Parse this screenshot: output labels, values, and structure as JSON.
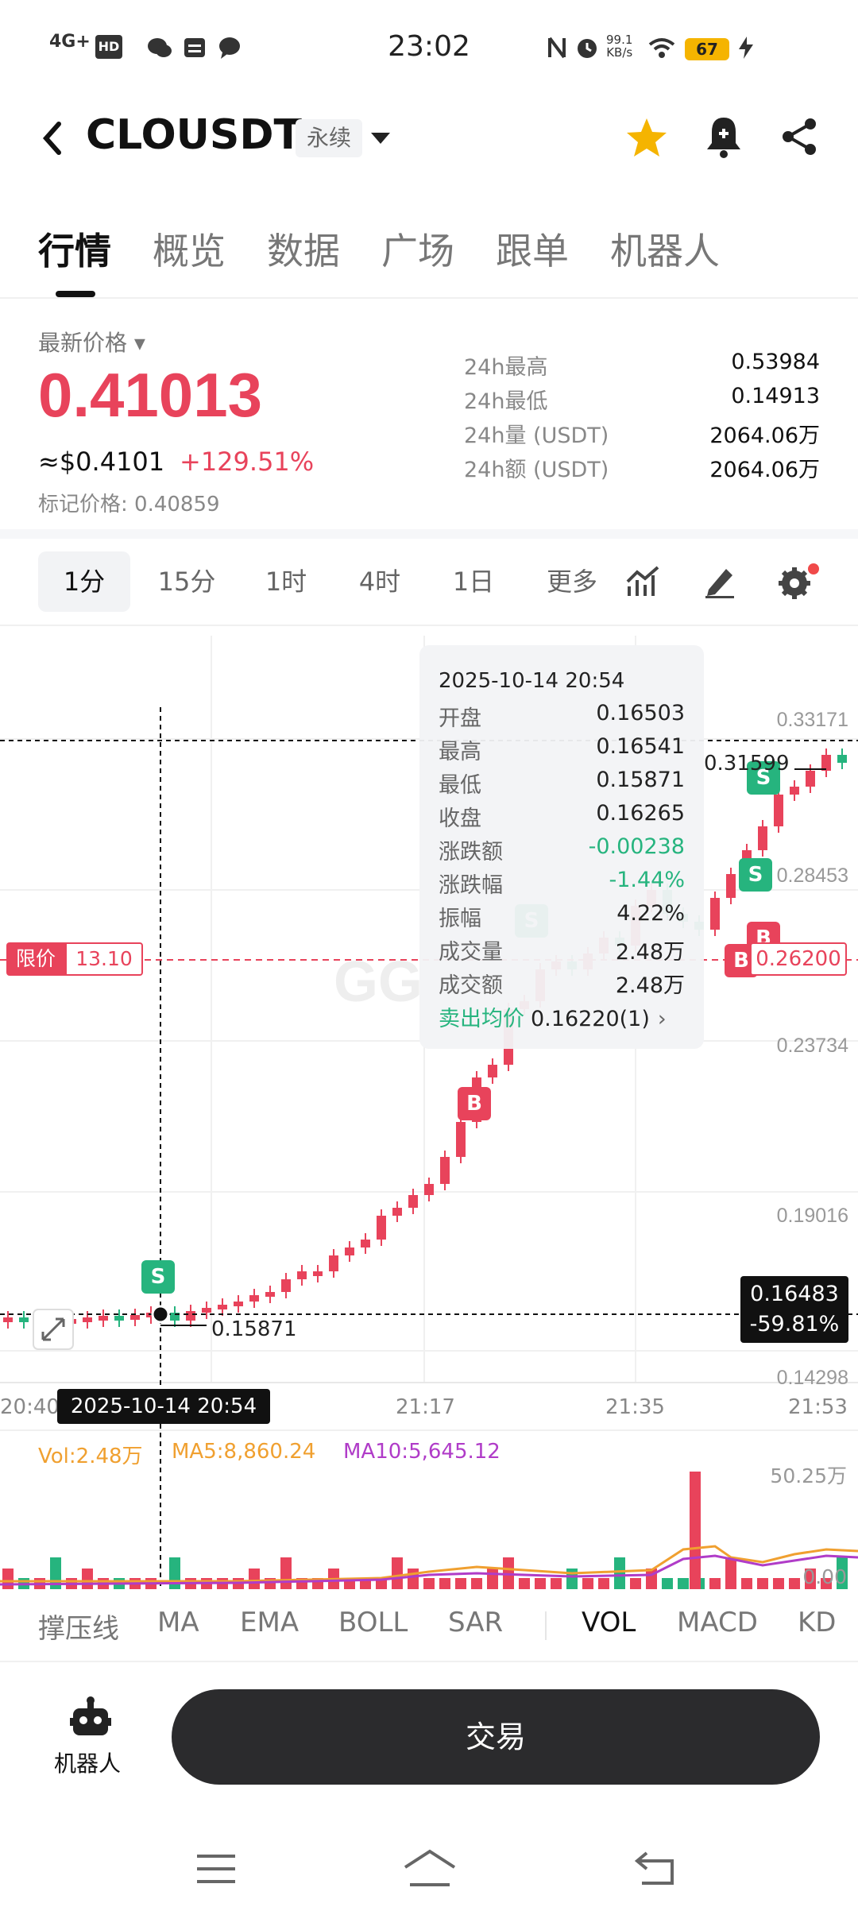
{
  "status_bar": {
    "time": "23:02",
    "network": "4G+",
    "hd": "HD",
    "speed_value": "99.1",
    "speed_unit": "KB/s",
    "battery": "67"
  },
  "header": {
    "symbol": "CLOUSDT",
    "contract_type": "永续"
  },
  "tabs": [
    "行情",
    "概览",
    "数据",
    "广场",
    "跟单",
    "机器人"
  ],
  "price": {
    "latest_label": "最新价格",
    "latest": "0.41013",
    "usd": "≈$0.4101",
    "change": "+129.51%",
    "mark_label": "标记价格:",
    "mark_value": "0.40859"
  },
  "stats": [
    {
      "label": "24h最高",
      "value": "0.53984"
    },
    {
      "label": "24h最低",
      "value": "0.14913"
    },
    {
      "label": "24h量 (USDT)",
      "value": "2064.06万"
    },
    {
      "label": "24h额 (USDT)",
      "value": "2064.06万"
    }
  ],
  "periods": [
    "1分",
    "15分",
    "1时",
    "4时",
    "1日",
    "更多"
  ],
  "chart": {
    "y_labels": [
      "0.33171",
      "0.28453",
      "0.23734",
      "0.19016",
      "0.14298"
    ],
    "x_labels": [
      "20:40",
      "21:17",
      "21:35",
      "21:53"
    ],
    "limit_label": "限价",
    "limit_value": "13.10",
    "right_price_tag": "0.26200",
    "current_price": "0.16483",
    "current_change": "-59.81%",
    "crosshair_date": "2025-10-14 20:54",
    "low_marker": "0.15871",
    "high_marker": "0.31599",
    "watermark": "GG",
    "tooltip": {
      "date": "2025-10-14 20:54",
      "rows": [
        {
          "k": "开盘",
          "v": "0.16503"
        },
        {
          "k": "最高",
          "v": "0.16541"
        },
        {
          "k": "最低",
          "v": "0.15871"
        },
        {
          "k": "收盘",
          "v": "0.16265"
        },
        {
          "k": "涨跌额",
          "v": "-0.00238"
        },
        {
          "k": "涨跌幅",
          "v": "-1.44%"
        },
        {
          "k": "振幅",
          "v": "4.22%"
        },
        {
          "k": "成交量",
          "v": "2.48万"
        },
        {
          "k": "成交额",
          "v": "2.48万"
        }
      ],
      "avg_label": "卖出均价",
      "avg_value": "0.16220(1)"
    },
    "badges": {
      "sell": "S",
      "buy": "B"
    }
  },
  "volume": {
    "vol": "Vol:2.48万",
    "ma5": "MA5:8,860.24",
    "ma10": "MA10:5,645.12",
    "max_label": "50.25万",
    "zero_label": "0.00"
  },
  "indicators": [
    "撑压线",
    "MA",
    "EMA",
    "BOLL",
    "SAR",
    "VOL",
    "MACD",
    "KD"
  ],
  "bottom": {
    "robot_label": "机器人",
    "trade_button": "交易"
  },
  "colors": {
    "up": "#e8435b",
    "down": "#26b47e",
    "accent_star": "#f5b400",
    "ma5": "#f0a030",
    "ma10": "#b03cc8"
  }
}
